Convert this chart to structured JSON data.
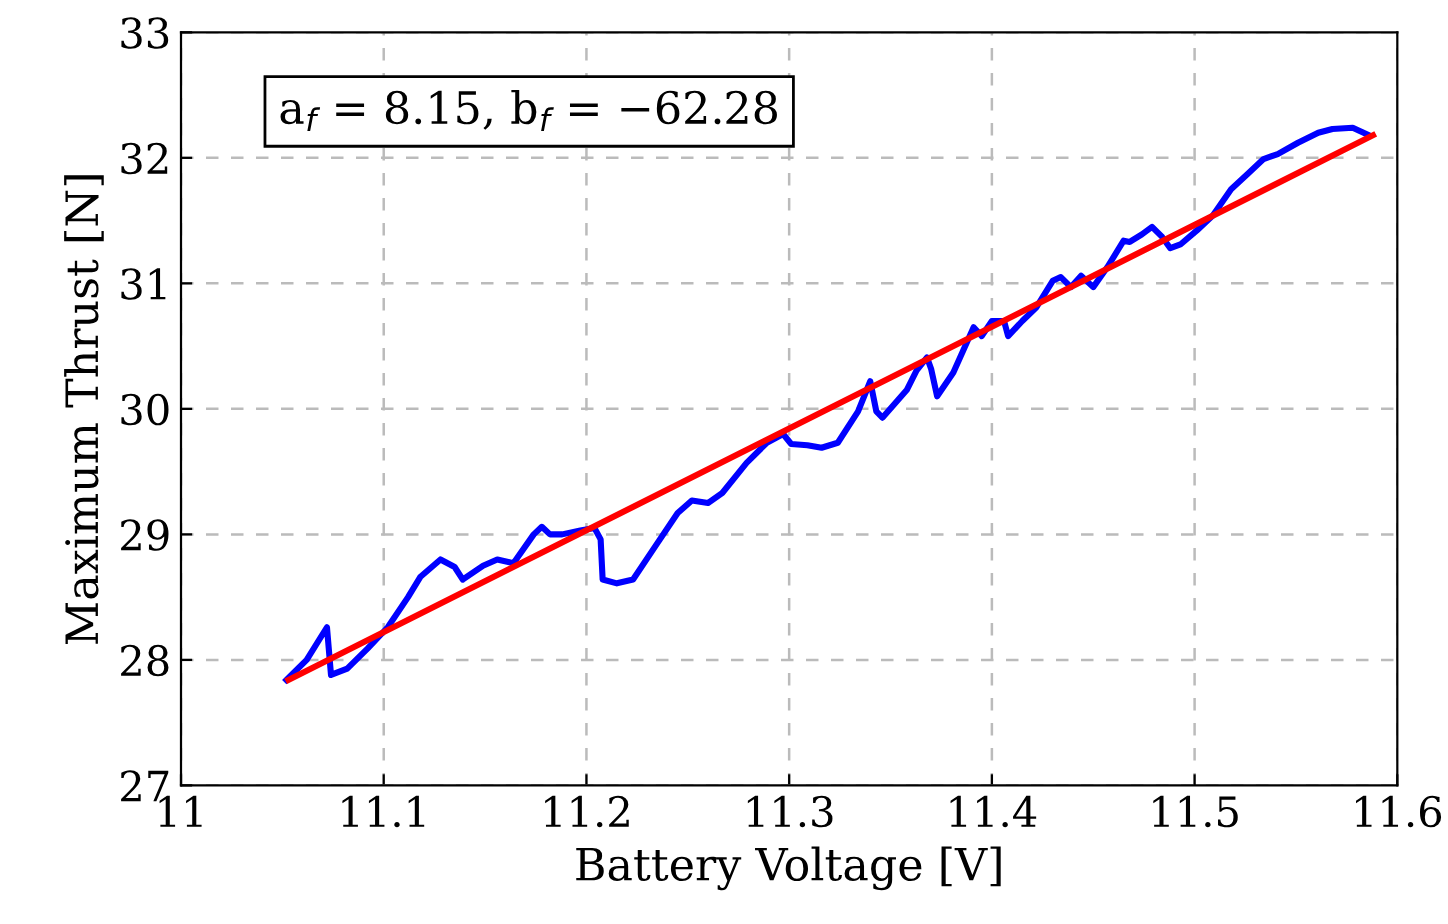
{
  "chart_data": {
    "type": "line",
    "xlabel": "Battery Voltage [V]",
    "ylabel": "Maximum Thrust [N]",
    "annotations": [
      "a$_{f}$ = 8.15, b$_{f}$ = −62.28"
    ],
    "xlim": [
      11,
      11.6
    ],
    "xticks": [
      11,
      11.1,
      11.2,
      11.3,
      11.4,
      11.5,
      11.6
    ],
    "ylim": [
      27,
      33
    ],
    "yticks": [
      27,
      28,
      29,
      30,
      31,
      32,
      33
    ],
    "grid": true,
    "line_style": "solid",
    "marker": "none",
    "series": [
      {
        "color": "#0000ff",
        "x": [
          11.052,
          11.062,
          11.072,
          11.074,
          11.082,
          11.092,
          11.102,
          11.112,
          11.118,
          11.128,
          11.135,
          11.139,
          11.149,
          11.156,
          11.164,
          11.174,
          11.178,
          11.182,
          11.188,
          11.197,
          11.204,
          11.207,
          11.208,
          11.215,
          11.223,
          11.235,
          11.245,
          11.252,
          11.26,
          11.267,
          11.279,
          11.289,
          11.297,
          11.301,
          11.309,
          11.316,
          11.324,
          11.334,
          11.34,
          11.343,
          11.346,
          11.358,
          11.363,
          11.368,
          11.37,
          11.373,
          11.381,
          11.391,
          11.395,
          11.4,
          11.406,
          11.408,
          11.415,
          11.422,
          11.43,
          11.434,
          11.439,
          11.444,
          11.45,
          11.457,
          11.465,
          11.468,
          11.474,
          11.479,
          11.484,
          11.488,
          11.493,
          11.501,
          11.509,
          11.518,
          11.526,
          11.534,
          11.541,
          11.551,
          11.561,
          11.568,
          11.578,
          11.586
        ],
        "values": [
          27.84,
          28.0,
          28.26,
          27.88,
          27.93,
          28.09,
          28.26,
          28.5,
          28.66,
          28.8,
          28.74,
          28.64,
          28.75,
          28.8,
          28.77,
          29.0,
          29.06,
          29.0,
          29.0,
          29.03,
          29.05,
          28.96,
          28.64,
          28.61,
          28.64,
          28.93,
          29.17,
          29.27,
          29.25,
          29.33,
          29.57,
          29.73,
          29.8,
          29.72,
          29.71,
          29.69,
          29.73,
          29.98,
          30.22,
          29.98,
          29.93,
          30.15,
          30.31,
          30.41,
          30.32,
          30.1,
          30.29,
          30.65,
          30.58,
          30.7,
          30.7,
          30.58,
          30.7,
          30.81,
          31.02,
          31.05,
          30.97,
          31.06,
          30.97,
          31.13,
          31.34,
          31.33,
          31.39,
          31.45,
          31.37,
          31.28,
          31.31,
          31.42,
          31.54,
          31.75,
          31.87,
          31.99,
          32.03,
          32.12,
          32.2,
          32.23,
          32.24,
          32.18
        ]
      },
      {
        "color": "#ff0000",
        "x": [
          11.053,
          11.588
        ],
        "values": [
          27.84,
          32.18
        ]
      }
    ]
  }
}
